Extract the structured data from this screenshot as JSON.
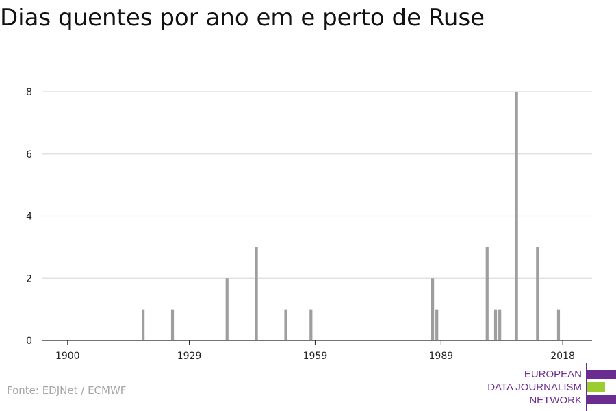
{
  "title": "Dias quentes por ano em e perto de Ruse",
  "source": "Fonte: EDJNet / ECMWF",
  "logo": {
    "lines": [
      "EUROPEAN",
      "DATA JOURNALISM",
      "NETWORK"
    ],
    "colors": {
      "purple": "#6b2c91",
      "green": "#9acd32"
    }
  },
  "chart_data": {
    "type": "bar",
    "title": "Dias quentes por ano em e perto de Ruse",
    "xlabel": "",
    "ylabel": "",
    "xlim": [
      1894,
      2025
    ],
    "ylim": [
      0,
      8
    ],
    "x_ticks": [
      1900,
      1929,
      1959,
      1989,
      2018
    ],
    "y_ticks": [
      0,
      2,
      4,
      6,
      8
    ],
    "grid": true,
    "bar_color": "#9e9e9e",
    "points": [
      {
        "x": 1918,
        "y": 1
      },
      {
        "x": 1925,
        "y": 1
      },
      {
        "x": 1938,
        "y": 2
      },
      {
        "x": 1945,
        "y": 3
      },
      {
        "x": 1952,
        "y": 1
      },
      {
        "x": 1958,
        "y": 1
      },
      {
        "x": 1987,
        "y": 2
      },
      {
        "x": 1988,
        "y": 1
      },
      {
        "x": 2000,
        "y": 3
      },
      {
        "x": 2002,
        "y": 1
      },
      {
        "x": 2003,
        "y": 1
      },
      {
        "x": 2007,
        "y": 8
      },
      {
        "x": 2012,
        "y": 3
      },
      {
        "x": 2017,
        "y": 1
      }
    ]
  }
}
